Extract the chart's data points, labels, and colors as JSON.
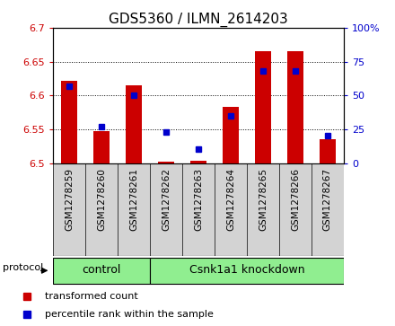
{
  "title": "GDS5360 / ILMN_2614203",
  "samples": [
    "GSM1278259",
    "GSM1278260",
    "GSM1278261",
    "GSM1278262",
    "GSM1278263",
    "GSM1278264",
    "GSM1278265",
    "GSM1278266",
    "GSM1278267"
  ],
  "transformed_count": [
    6.622,
    6.547,
    6.615,
    6.502,
    6.503,
    6.583,
    6.665,
    6.665,
    6.535
  ],
  "percentile_rank": [
    57,
    27,
    50,
    23,
    10,
    35,
    68,
    68,
    20
  ],
  "ylim_left": [
    6.5,
    6.7
  ],
  "ylim_right": [
    0,
    100
  ],
  "yticks_left": [
    6.5,
    6.55,
    6.6,
    6.65,
    6.7
  ],
  "yticks_right": [
    0,
    25,
    50,
    75,
    100
  ],
  "ytick_labels_left": [
    "6.5",
    "6.55",
    "6.6",
    "6.65",
    "6.7"
  ],
  "ytick_labels_right": [
    "0",
    "25",
    "50",
    "75",
    "100%"
  ],
  "bar_color": "#cc0000",
  "point_color": "#0000cc",
  "background_plot": "#ffffff",
  "control_samples": [
    0,
    1,
    2
  ],
  "knockdown_samples": [
    3,
    4,
    5,
    6,
    7,
    8
  ],
  "control_label": "control",
  "knockdown_label": "Csnk1a1 knockdown",
  "protocol_label": "protocol",
  "legend_bar_label": "transformed count",
  "legend_point_label": "percentile rank within the sample",
  "group_bar_color": "#90ee90",
  "title_fontsize": 11,
  "tick_fontsize": 8,
  "label_fontsize": 8
}
